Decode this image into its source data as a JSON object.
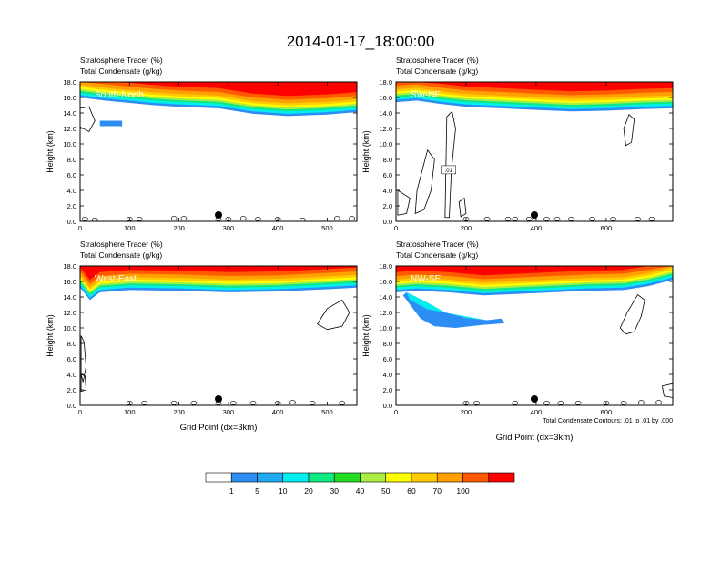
{
  "figure": {
    "title": "2014-01-17_18:00:00",
    "legend_values": [
      "1",
      "5",
      "10",
      "20",
      "30",
      "40",
      "50",
      "60",
      "70",
      "100"
    ],
    "legend_colors": [
      "#ffffff",
      "#2c8ef5",
      "#21a9f0",
      "#00eeee",
      "#10e882",
      "#22dd22",
      "#aaee44",
      "#ffff00",
      "#ffcc00",
      "#ffa000",
      "#ff5a00",
      "#ff0000"
    ],
    "contour_note": "Total Condensate Contours: .01 to .01 by .000"
  },
  "chart_data": [
    {
      "type": "heatmap",
      "panel_label": "South-North",
      "title_left_1": "Stratosphere Tracer   (%)",
      "title_left_2": "Total Condensate   (g/kg)",
      "ylabel": "Height (km)",
      "xlabel": "",
      "xlim": [
        0,
        560
      ],
      "ylim": [
        0,
        18
      ],
      "x_ticks": [
        "0",
        "100",
        "200",
        "300",
        "400",
        "500"
      ],
      "y_ticks": [
        "0.0",
        "2.0",
        "4.0",
        "6.0",
        "8.0",
        "10.0",
        "12.0",
        "14.0",
        "16.0",
        "18.0"
      ],
      "marker_x": 280,
      "tropopause_km": [
        [
          0,
          16.4
        ],
        [
          50,
          16.0
        ],
        [
          100,
          15.7
        ],
        [
          150,
          15.4
        ],
        [
          200,
          15.2
        ],
        [
          280,
          15.0
        ],
        [
          350,
          14.3
        ],
        [
          420,
          14.0
        ],
        [
          500,
          14.2
        ],
        [
          560,
          14.5
        ]
      ],
      "blob_extra": [
        [
          40,
          13.0
        ],
        [
          85,
          13.0
        ],
        [
          85,
          12.3
        ],
        [
          40,
          12.3
        ]
      ],
      "contours": [
        [
          [
            0,
            14.6
          ],
          [
            18,
            14.8
          ],
          [
            30,
            13.0
          ],
          [
            18,
            11.6
          ],
          [
            0,
            12.2
          ]
        ]
      ],
      "condensate_ticks": [
        [
          10,
          0.3
        ],
        [
          30,
          0.2
        ],
        [
          100,
          0.3
        ],
        [
          120,
          0.3
        ],
        [
          190,
          0.4
        ],
        [
          210,
          0.4
        ],
        [
          280,
          0.3
        ],
        [
          300,
          0.3
        ],
        [
          330,
          0.4
        ],
        [
          360,
          0.3
        ],
        [
          400,
          0.3
        ],
        [
          450,
          0.2
        ],
        [
          520,
          0.4
        ],
        [
          550,
          0.4
        ]
      ]
    },
    {
      "type": "heatmap",
      "panel_label": "SW-NE",
      "title_left_1": "Stratosphere Tracer   (%)",
      "title_left_2": "Total Condensate   (g/kg)",
      "ylabel": "Height (km)",
      "xlabel": "",
      "xlim": [
        0,
        790
      ],
      "ylim": [
        0,
        18
      ],
      "x_ticks": [
        "0",
        "200",
        "400",
        "600"
      ],
      "x_tick_vals": [
        0,
        200,
        400,
        600
      ],
      "y_ticks": [
        "0.0",
        "2.0",
        "4.0",
        "6.0",
        "8.0",
        "10.0",
        "12.0",
        "14.0",
        "16.0",
        "18.0"
      ],
      "marker_x": 395,
      "tropopause_km": [
        [
          0,
          15.8
        ],
        [
          60,
          16.0
        ],
        [
          120,
          15.6
        ],
        [
          200,
          15.2
        ],
        [
          300,
          15.0
        ],
        [
          400,
          14.8
        ],
        [
          500,
          14.6
        ],
        [
          600,
          14.7
        ],
        [
          700,
          14.9
        ],
        [
          790,
          15.0
        ]
      ],
      "contour_label": ".01",
      "contours": [
        [
          [
            60,
            4.0
          ],
          [
            90,
            9.2
          ],
          [
            110,
            8.0
          ],
          [
            100,
            4.0
          ],
          [
            80,
            1.5
          ],
          [
            55,
            1.0
          ]
        ],
        [
          [
            140,
            0.5
          ],
          [
            145,
            13.5
          ],
          [
            160,
            14.2
          ],
          [
            170,
            12.0
          ],
          [
            158,
            6.5
          ],
          [
            152,
            0.5
          ]
        ],
        [
          [
            650,
            12.0
          ],
          [
            665,
            13.8
          ],
          [
            680,
            13.2
          ],
          [
            672,
            10.2
          ],
          [
            656,
            9.8
          ]
        ],
        [
          [
            5,
            4.0
          ],
          [
            40,
            3.0
          ],
          [
            30,
            1.0
          ],
          [
            5,
            0.8
          ]
        ],
        [
          [
            180,
            2.5
          ],
          [
            195,
            3.0
          ],
          [
            200,
            1.0
          ],
          [
            185,
            0.6
          ]
        ]
      ],
      "condensate_ticks": [
        [
          200,
          0.3
        ],
        [
          260,
          0.3
        ],
        [
          320,
          0.3
        ],
        [
          340,
          0.3
        ],
        [
          380,
          0.3
        ],
        [
          430,
          0.3
        ],
        [
          460,
          0.3
        ],
        [
          500,
          0.3
        ],
        [
          560,
          0.3
        ],
        [
          620,
          0.3
        ],
        [
          690,
          0.3
        ],
        [
          730,
          0.3
        ]
      ]
    },
    {
      "type": "heatmap",
      "panel_label": "West-East",
      "title_left_1": "Stratosphere Tracer   (%)",
      "title_left_2": "Total Condensate   (g/kg)",
      "ylabel": "Height (km)",
      "xlabel": "Grid Point (dx=3km)",
      "xlim": [
        0,
        560
      ],
      "ylim": [
        0,
        18
      ],
      "x_ticks": [
        "0",
        "100",
        "200",
        "300",
        "400",
        "500"
      ],
      "y_ticks": [
        "0.0",
        "2.0",
        "4.0",
        "6.0",
        "8.0",
        "10.0",
        "12.0",
        "14.0",
        "16.0",
        "18.0"
      ],
      "marker_x": 280,
      "tropopause_km": [
        [
          0,
          15.6
        ],
        [
          20,
          14.0
        ],
        [
          40,
          15.0
        ],
        [
          100,
          15.3
        ],
        [
          200,
          15.2
        ],
        [
          300,
          15.0
        ],
        [
          400,
          15.1
        ],
        [
          500,
          15.4
        ],
        [
          560,
          15.6
        ]
      ],
      "contours": [
        [
          [
            480,
            10.5
          ],
          [
            500,
            12.5
          ],
          [
            530,
            13.6
          ],
          [
            545,
            12.0
          ],
          [
            530,
            10.2
          ],
          [
            500,
            9.8
          ]
        ],
        [
          [
            2,
            9.0
          ],
          [
            8,
            8.2
          ],
          [
            12,
            5.0
          ],
          [
            6,
            3.0
          ],
          [
            2,
            4.0
          ]
        ],
        [
          [
            2,
            4.0
          ],
          [
            10,
            3.8
          ],
          [
            12,
            2.0
          ],
          [
            2,
            1.8
          ]
        ]
      ],
      "condensate_ticks": [
        [
          100,
          0.3
        ],
        [
          130,
          0.3
        ],
        [
          190,
          0.3
        ],
        [
          230,
          0.3
        ],
        [
          280,
          0.3
        ],
        [
          310,
          0.3
        ],
        [
          350,
          0.3
        ],
        [
          400,
          0.3
        ],
        [
          430,
          0.4
        ],
        [
          470,
          0.3
        ],
        [
          530,
          0.3
        ]
      ]
    },
    {
      "type": "heatmap",
      "panel_label": "NW-SE",
      "title_left_1": "Stratosphere Tracer   (%)",
      "title_left_2": "Total Condensate   (g/kg)",
      "ylabel": "Height (km)",
      "xlabel": "Grid Point (dx=3km)",
      "xlim": [
        0,
        790
      ],
      "ylim": [
        0,
        18
      ],
      "x_ticks": [
        "0",
        "200",
        "400",
        "600"
      ],
      "x_tick_vals": [
        0,
        200,
        400,
        600
      ],
      "y_ticks": [
        "0.0",
        "2.0",
        "4.0",
        "6.0",
        "8.0",
        "10.0",
        "12.0",
        "14.0",
        "16.0",
        "18.0"
      ],
      "marker_x": 395,
      "tropopause_km": [
        [
          0,
          15.0
        ],
        [
          60,
          15.2
        ],
        [
          150,
          15.0
        ],
        [
          250,
          14.6
        ],
        [
          350,
          14.8
        ],
        [
          450,
          15.0
        ],
        [
          550,
          15.2
        ],
        [
          650,
          15.3
        ],
        [
          720,
          15.8
        ],
        [
          790,
          16.6
        ]
      ],
      "plume": [
        [
          30,
          14.6
        ],
        [
          80,
          13.5
        ],
        [
          140,
          12.0
        ],
        [
          200,
          11.3
        ],
        [
          260,
          11.0
        ],
        [
          300,
          11.2
        ],
        [
          310,
          10.6
        ],
        [
          250,
          10.4
        ],
        [
          170,
          10.0
        ],
        [
          110,
          10.2
        ],
        [
          70,
          11.2
        ],
        [
          40,
          13.0
        ],
        [
          20,
          14.2
        ]
      ],
      "contours": [
        [
          [
            640,
            10.0
          ],
          [
            660,
            12.0
          ],
          [
            690,
            14.3
          ],
          [
            710,
            13.6
          ],
          [
            700,
            11.5
          ],
          [
            680,
            9.5
          ],
          [
            655,
            9.2
          ]
        ],
        [
          [
            760,
            2.5
          ],
          [
            790,
            2.8
          ],
          [
            790,
            1.0
          ],
          [
            765,
            1.2
          ]
        ]
      ],
      "condensate_ticks": [
        [
          200,
          0.3
        ],
        [
          230,
          0.3
        ],
        [
          340,
          0.3
        ],
        [
          430,
          0.3
        ],
        [
          470,
          0.3
        ],
        [
          520,
          0.3
        ],
        [
          600,
          0.3
        ],
        [
          650,
          0.3
        ],
        [
          700,
          0.4
        ],
        [
          750,
          0.4
        ]
      ]
    }
  ]
}
